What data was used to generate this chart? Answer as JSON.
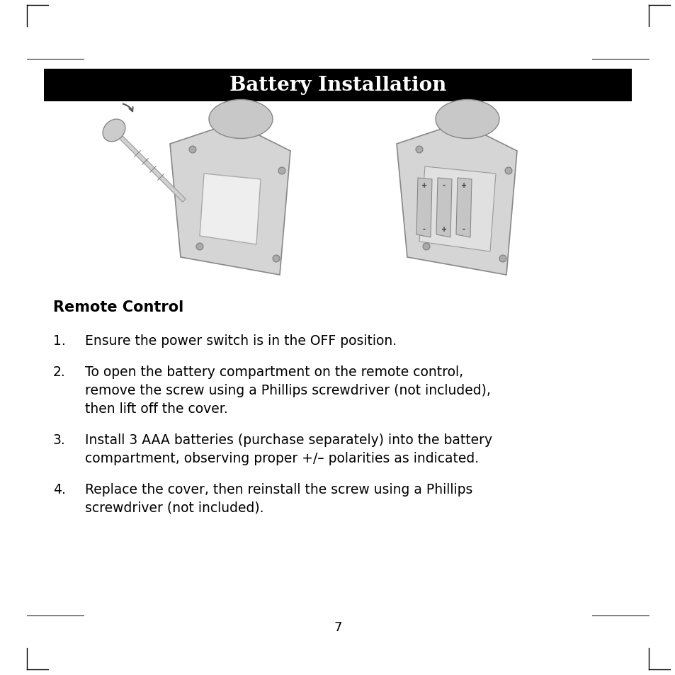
{
  "title": "Battery Installation",
  "title_bg": "#000000",
  "title_color": "#ffffff",
  "title_fontsize": 20,
  "section_heading": "Remote Control",
  "section_heading_fontsize": 15,
  "body_fontsize": 13.5,
  "page_number": "7",
  "background_color": "#ffffff",
  "items": [
    {
      "number": "1.",
      "text": "Ensure the power switch is in the OFF position."
    },
    {
      "number": "2.",
      "text": "To open the battery compartment on the remote control,\nremove the screw using a Phillips screwdriver (not included),\nthen lift off the cover."
    },
    {
      "number": "3.",
      "text": "Install 3 AAA batteries (purchase separately) into the battery\ncompartment, observing proper +/– polarities as indicated."
    },
    {
      "number": "4.",
      "text": "Replace the cover, then reinstall the screw using a Phillips\nscrewdriver (not included)."
    }
  ]
}
